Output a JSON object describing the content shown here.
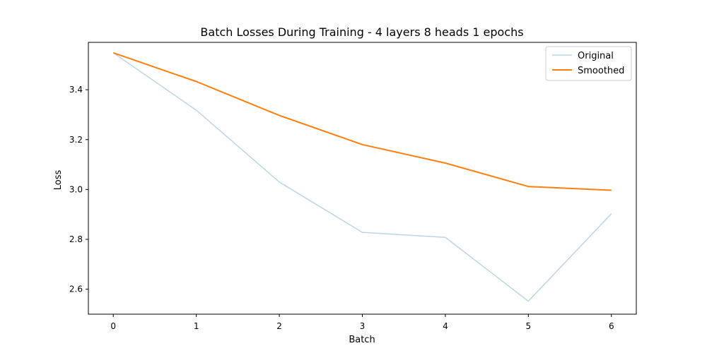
{
  "chart_data": {
    "type": "line",
    "title": "Batch Losses During Training - 4 layers 8 heads 1 epochs",
    "xlabel": "Batch",
    "ylabel": "Loss",
    "x": [
      0,
      1,
      2,
      3,
      4,
      5,
      6
    ],
    "xlim": [
      -0.3,
      6.3
    ],
    "ylim": [
      2.5,
      3.59
    ],
    "xticks": [
      0,
      1,
      2,
      3,
      4,
      5,
      6
    ],
    "yticks": [
      2.6,
      2.8,
      3.0,
      3.2,
      3.4
    ],
    "ytick_labels": [
      "2.6",
      "2.8",
      "3.0",
      "3.2",
      "3.4"
    ],
    "grid": false,
    "legend_position": "top-right",
    "series": [
      {
        "name": "Original",
        "color": "#1f77b4",
        "opacity": 0.3,
        "values": [
          3.548,
          3.318,
          3.03,
          2.828,
          2.808,
          2.552,
          2.903
        ]
      },
      {
        "name": "Smoothed",
        "color": "#ff7f0e",
        "opacity": 1.0,
        "values": [
          3.548,
          3.433,
          3.297,
          3.18,
          3.106,
          3.012,
          2.997
        ]
      }
    ]
  }
}
